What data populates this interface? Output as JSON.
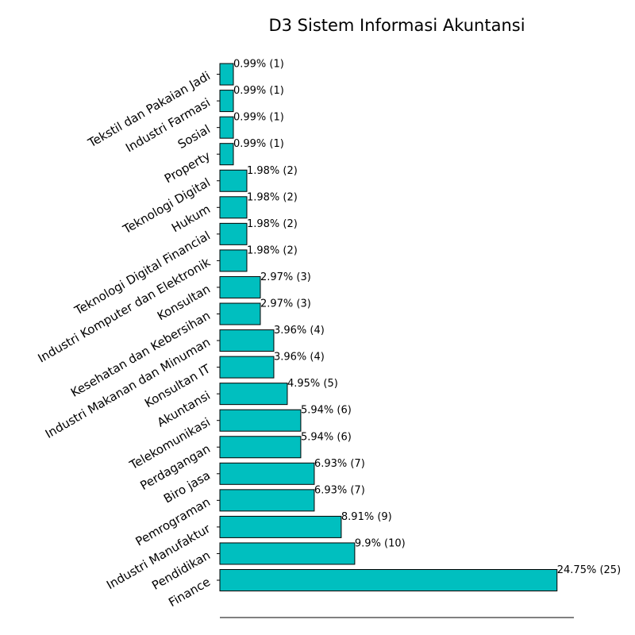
{
  "chart_data": {
    "type": "bar",
    "orientation": "horizontal",
    "title": "D3 Sistem Informasi Akuntansi",
    "xlabel": "",
    "ylabel": "",
    "bar_color": "#00BFBF",
    "bar_edge_color": "#000000",
    "xlim": [
      0,
      26.25
    ],
    "categories": [
      "Finance",
      "Pendidikan",
      "Industri Manufaktur",
      "Pemrograman",
      "Biro jasa",
      "Perdagangan",
      "Telekomunikasi",
      "Akuntansi",
      "Konsultan IT",
      "Industri Makanan dan Minuman",
      "Kesehatan dan Kebersihan",
      "Konsultan",
      "Industri Komputer dan Elektronik",
      "Teknologi Digital Financial",
      "Hukum",
      "Teknologi Digital",
      "Property",
      "Sosial",
      "Industri Farmasi",
      "Tekstil dan Pakaian Jadi"
    ],
    "values": [
      25,
      10,
      9,
      7,
      7,
      6,
      6,
      5,
      4,
      4,
      3,
      3,
      2,
      2,
      2,
      2,
      1,
      1,
      1,
      1
    ],
    "labels": [
      "24.75% (25)",
      "9.9% (10)",
      "8.91% (9)",
      "6.93% (7)",
      "6.93% (7)",
      "5.94% (6)",
      "5.94% (6)",
      "4.95% (5)",
      "3.96% (4)",
      "3.96% (4)",
      "2.97% (3)",
      "2.97% (3)",
      "1.98% (2)",
      "1.98% (2)",
      "1.98% (2)",
      "1.98% (2)",
      "0.99% (1)",
      "0.99% (1)",
      "0.99% (1)",
      "0.99% (1)"
    ],
    "grid": false,
    "legend": "none"
  }
}
